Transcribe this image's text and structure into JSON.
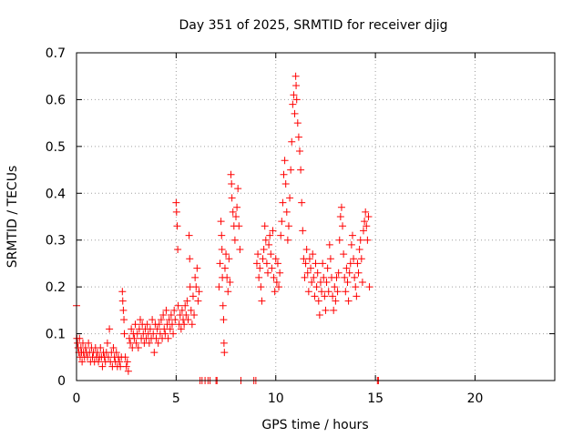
{
  "chart_data": {
    "type": "scatter",
    "title": "Day 351 of 2025, SRMTID for receiver djig",
    "xlabel": "GPS time / hours",
    "ylabel": "SRMTID / TECUs",
    "xlim": [
      0,
      24
    ],
    "ylim": [
      0,
      0.7
    ],
    "xticks": [
      0,
      5,
      10,
      15,
      20
    ],
    "xtick_labels": [
      "0",
      "5",
      "10",
      "15",
      "20"
    ],
    "yticks": [
      0,
      0.1,
      0.2,
      0.3,
      0.4,
      0.5,
      0.6,
      0.7
    ],
    "ytick_labels": [
      "0",
      "0.1",
      "0.2",
      "0.3",
      "0.4",
      "0.5",
      "0.6",
      "0.7"
    ],
    "grid": true,
    "marker": "+",
    "series": [
      {
        "name": "SRMTID",
        "color": "#ff0000",
        "points": [
          [
            0.0,
            0.16
          ],
          [
            0.02,
            0.09
          ],
          [
            0.05,
            0.08
          ],
          [
            0.08,
            0.07
          ],
          [
            0.12,
            0.06
          ],
          [
            0.15,
            0.09
          ],
          [
            0.18,
            0.05
          ],
          [
            0.22,
            0.07
          ],
          [
            0.25,
            0.06
          ],
          [
            0.28,
            0.04
          ],
          [
            0.32,
            0.08
          ],
          [
            0.35,
            0.06
          ],
          [
            0.4,
            0.05
          ],
          [
            0.45,
            0.07
          ],
          [
            0.5,
            0.06
          ],
          [
            0.55,
            0.05
          ],
          [
            0.6,
            0.08
          ],
          [
            0.65,
            0.06
          ],
          [
            0.7,
            0.04
          ],
          [
            0.75,
            0.07
          ],
          [
            0.8,
            0.05
          ],
          [
            0.85,
            0.06
          ],
          [
            0.9,
            0.04
          ],
          [
            0.95,
            0.07
          ],
          [
            1.0,
            0.05
          ],
          [
            1.05,
            0.06
          ],
          [
            1.1,
            0.04
          ],
          [
            1.15,
            0.05
          ],
          [
            1.2,
            0.07
          ],
          [
            1.25,
            0.05
          ],
          [
            1.3,
            0.03
          ],
          [
            1.35,
            0.06
          ],
          [
            1.4,
            0.05
          ],
          [
            1.45,
            0.04
          ],
          [
            1.5,
            0.06
          ],
          [
            1.55,
            0.08
          ],
          [
            1.6,
            0.05
          ],
          [
            1.65,
            0.11
          ],
          [
            1.7,
            0.04
          ],
          [
            1.75,
            0.06
          ],
          [
            1.8,
            0.03
          ],
          [
            1.85,
            0.07
          ],
          [
            1.9,
            0.05
          ],
          [
            1.95,
            0.04
          ],
          [
            2.0,
            0.06
          ],
          [
            2.05,
            0.03
          ],
          [
            2.1,
            0.05
          ],
          [
            2.15,
            0.04
          ],
          [
            2.2,
            0.03
          ],
          [
            2.25,
            0.05
          ],
          [
            2.3,
            0.19
          ],
          [
            2.32,
            0.17
          ],
          [
            2.35,
            0.15
          ],
          [
            2.38,
            0.13
          ],
          [
            2.4,
            0.1
          ],
          [
            2.45,
            0.05
          ],
          [
            2.5,
            0.03
          ],
          [
            2.55,
            0.04
          ],
          [
            2.6,
            0.02
          ],
          [
            2.65,
            0.09
          ],
          [
            2.7,
            0.08
          ],
          [
            2.75,
            0.11
          ],
          [
            2.8,
            0.07
          ],
          [
            2.85,
            0.1
          ],
          [
            2.9,
            0.09
          ],
          [
            2.95,
            0.12
          ],
          [
            3.0,
            0.08
          ],
          [
            3.05,
            0.1
          ],
          [
            3.1,
            0.07
          ],
          [
            3.15,
            0.11
          ],
          [
            3.2,
            0.13
          ],
          [
            3.25,
            0.09
          ],
          [
            3.3,
            0.12
          ],
          [
            3.35,
            0.1
          ],
          [
            3.4,
            0.08
          ],
          [
            3.45,
            0.11
          ],
          [
            3.5,
            0.09
          ],
          [
            3.55,
            0.12
          ],
          [
            3.6,
            0.1
          ],
          [
            3.65,
            0.08
          ],
          [
            3.7,
            0.11
          ],
          [
            3.75,
            0.09
          ],
          [
            3.8,
            0.13
          ],
          [
            3.85,
            0.1
          ],
          [
            3.9,
            0.06
          ],
          [
            3.95,
            0.12
          ],
          [
            4.0,
            0.09
          ],
          [
            4.05,
            0.11
          ],
          [
            4.1,
            0.08
          ],
          [
            4.15,
            0.12
          ],
          [
            4.2,
            0.1
          ],
          [
            4.25,
            0.13
          ],
          [
            4.3,
            0.09
          ],
          [
            4.35,
            0.14
          ],
          [
            4.4,
            0.11
          ],
          [
            4.45,
            0.1
          ],
          [
            4.5,
            0.15
          ],
          [
            4.55,
            0.12
          ],
          [
            4.6,
            0.09
          ],
          [
            4.65,
            0.13
          ],
          [
            4.7,
            0.11
          ],
          [
            4.75,
            0.14
          ],
          [
            4.8,
            0.12
          ],
          [
            4.85,
            0.1
          ],
          [
            4.9,
            0.15
          ],
          [
            4.95,
            0.13
          ],
          [
            5.0,
            0.38
          ],
          [
            5.02,
            0.36
          ],
          [
            5.05,
            0.33
          ],
          [
            5.08,
            0.28
          ],
          [
            5.1,
            0.16
          ],
          [
            5.15,
            0.12
          ],
          [
            5.2,
            0.14
          ],
          [
            5.25,
            0.11
          ],
          [
            5.3,
            0.15
          ],
          [
            5.35,
            0.13
          ],
          [
            5.4,
            0.12
          ],
          [
            5.45,
            0.16
          ],
          [
            5.5,
            0.14
          ],
          [
            5.55,
            0.17
          ],
          [
            5.6,
            0.13
          ],
          [
            5.65,
            0.31
          ],
          [
            5.68,
            0.26
          ],
          [
            5.7,
            0.2
          ],
          [
            5.75,
            0.15
          ],
          [
            5.8,
            0.12
          ],
          [
            5.85,
            0.18
          ],
          [
            5.9,
            0.14
          ],
          [
            5.95,
            0.22
          ],
          [
            6.0,
            0.2
          ],
          [
            6.05,
            0.24
          ],
          [
            6.1,
            0.17
          ],
          [
            6.15,
            0.19
          ],
          [
            6.2,
            0.0
          ],
          [
            6.3,
            0.0
          ],
          [
            6.45,
            0.0
          ],
          [
            6.6,
            0.0
          ],
          [
            6.7,
            0.0
          ],
          [
            7.0,
            0.0
          ],
          [
            7.05,
            0.0
          ],
          [
            7.15,
            0.2
          ],
          [
            7.2,
            0.25
          ],
          [
            7.25,
            0.34
          ],
          [
            7.28,
            0.31
          ],
          [
            7.3,
            0.28
          ],
          [
            7.32,
            0.22
          ],
          [
            7.35,
            0.16
          ],
          [
            7.38,
            0.13
          ],
          [
            7.4,
            0.08
          ],
          [
            7.42,
            0.06
          ],
          [
            7.45,
            0.24
          ],
          [
            7.5,
            0.27
          ],
          [
            7.55,
            0.22
          ],
          [
            7.6,
            0.19
          ],
          [
            7.65,
            0.26
          ],
          [
            7.7,
            0.21
          ],
          [
            7.75,
            0.44
          ],
          [
            7.78,
            0.42
          ],
          [
            7.8,
            0.39
          ],
          [
            7.85,
            0.36
          ],
          [
            7.9,
            0.33
          ],
          [
            7.95,
            0.3
          ],
          [
            8.0,
            0.35
          ],
          [
            8.05,
            0.37
          ],
          [
            8.1,
            0.41
          ],
          [
            8.15,
            0.33
          ],
          [
            8.2,
            0.28
          ],
          [
            8.25,
            0.0
          ],
          [
            8.9,
            0.0
          ],
          [
            9.0,
            0.0
          ],
          [
            9.05,
            0.25
          ],
          [
            9.1,
            0.27
          ],
          [
            9.15,
            0.22
          ],
          [
            9.2,
            0.24
          ],
          [
            9.25,
            0.2
          ],
          [
            9.3,
            0.17
          ],
          [
            9.35,
            0.26
          ],
          [
            9.4,
            0.28
          ],
          [
            9.45,
            0.33
          ],
          [
            9.5,
            0.3
          ],
          [
            9.55,
            0.25
          ],
          [
            9.6,
            0.23
          ],
          [
            9.65,
            0.29
          ],
          [
            9.7,
            0.31
          ],
          [
            9.75,
            0.27
          ],
          [
            9.8,
            0.24
          ],
          [
            9.85,
            0.32
          ],
          [
            9.9,
            0.22
          ],
          [
            9.95,
            0.19
          ],
          [
            10.0,
            0.26
          ],
          [
            10.05,
            0.21
          ],
          [
            10.1,
            0.25
          ],
          [
            10.15,
            0.2
          ],
          [
            10.2,
            0.23
          ],
          [
            10.25,
            0.31
          ],
          [
            10.3,
            0.34
          ],
          [
            10.35,
            0.38
          ],
          [
            10.4,
            0.44
          ],
          [
            10.45,
            0.47
          ],
          [
            10.5,
            0.42
          ],
          [
            10.55,
            0.36
          ],
          [
            10.6,
            0.3
          ],
          [
            10.65,
            0.33
          ],
          [
            10.7,
            0.39
          ],
          [
            10.75,
            0.45
          ],
          [
            10.8,
            0.51
          ],
          [
            10.85,
            0.59
          ],
          [
            10.9,
            0.61
          ],
          [
            10.95,
            0.57
          ],
          [
            11.0,
            0.65
          ],
          [
            11.02,
            0.63
          ],
          [
            11.05,
            0.6
          ],
          [
            11.1,
            0.55
          ],
          [
            11.15,
            0.52
          ],
          [
            11.2,
            0.49
          ],
          [
            11.25,
            0.45
          ],
          [
            11.3,
            0.38
          ],
          [
            11.35,
            0.32
          ],
          [
            11.4,
            0.26
          ],
          [
            11.45,
            0.22
          ],
          [
            11.5,
            0.25
          ],
          [
            11.55,
            0.28
          ],
          [
            11.6,
            0.23
          ],
          [
            11.65,
            0.19
          ],
          [
            11.7,
            0.26
          ],
          [
            11.75,
            0.24
          ],
          [
            11.8,
            0.21
          ],
          [
            11.85,
            0.27
          ],
          [
            11.9,
            0.22
          ],
          [
            11.95,
            0.18
          ],
          [
            12.0,
            0.25
          ],
          [
            12.05,
            0.2
          ],
          [
            12.1,
            0.23
          ],
          [
            12.15,
            0.17
          ],
          [
            12.2,
            0.14
          ],
          [
            12.25,
            0.21
          ],
          [
            12.3,
            0.19
          ],
          [
            12.35,
            0.25
          ],
          [
            12.4,
            0.22
          ],
          [
            12.45,
            0.18
          ],
          [
            12.5,
            0.15
          ],
          [
            12.55,
            0.21
          ],
          [
            12.6,
            0.24
          ],
          [
            12.65,
            0.19
          ],
          [
            12.7,
            0.29
          ],
          [
            12.75,
            0.26
          ],
          [
            12.8,
            0.22
          ],
          [
            12.85,
            0.18
          ],
          [
            12.9,
            0.15
          ],
          [
            12.95,
            0.2
          ],
          [
            13.0,
            0.17
          ],
          [
            13.05,
            0.22
          ],
          [
            13.1,
            0.19
          ],
          [
            13.15,
            0.23
          ],
          [
            13.2,
            0.3
          ],
          [
            13.25,
            0.35
          ],
          [
            13.3,
            0.37
          ],
          [
            13.35,
            0.33
          ],
          [
            13.4,
            0.27
          ],
          [
            13.45,
            0.22
          ],
          [
            13.5,
            0.19
          ],
          [
            13.55,
            0.24
          ],
          [
            13.6,
            0.21
          ],
          [
            13.65,
            0.17
          ],
          [
            13.7,
            0.23
          ],
          [
            13.75,
            0.25
          ],
          [
            13.8,
            0.29
          ],
          [
            13.85,
            0.31
          ],
          [
            13.9,
            0.26
          ],
          [
            13.95,
            0.22
          ],
          [
            14.0,
            0.2
          ],
          [
            14.05,
            0.18
          ],
          [
            14.1,
            0.25
          ],
          [
            14.15,
            0.23
          ],
          [
            14.2,
            0.28
          ],
          [
            14.25,
            0.3
          ],
          [
            14.3,
            0.26
          ],
          [
            14.35,
            0.21
          ],
          [
            14.4,
            0.32
          ],
          [
            14.45,
            0.34
          ],
          [
            14.5,
            0.36
          ],
          [
            14.55,
            0.33
          ],
          [
            14.6,
            0.3
          ],
          [
            14.65,
            0.35
          ],
          [
            14.7,
            0.2
          ],
          [
            15.1,
            0.0
          ],
          [
            15.15,
            0.0
          ]
        ]
      }
    ]
  }
}
